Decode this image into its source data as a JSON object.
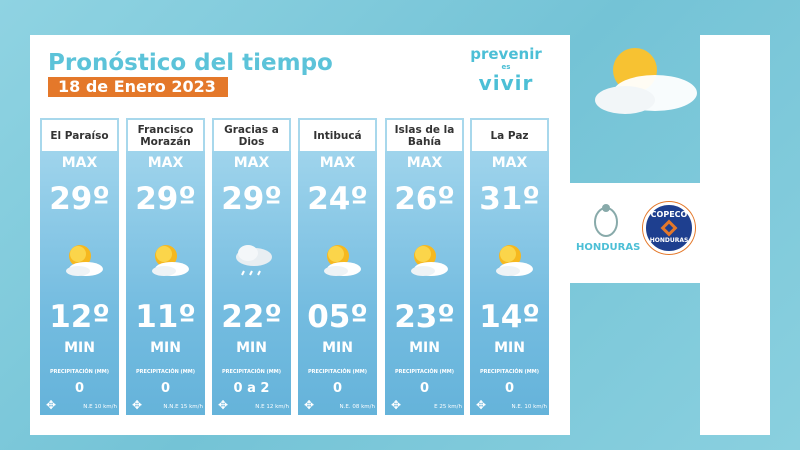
{
  "header": {
    "title": "Pronóstico del tiempo",
    "date": "18 de Enero 2023"
  },
  "brand": {
    "line1": "prevenir",
    "line2": "es",
    "line3": "vivir"
  },
  "labels": {
    "max": "MAX",
    "min": "MIN",
    "precip": "PRECIPITACIÓN (MM)"
  },
  "cards": [
    {
      "name": "El Paraíso",
      "max": "29º",
      "min": "12º",
      "icon": "sun-cloud-icon",
      "precip": "0",
      "wind": "N.E 10 km/h"
    },
    {
      "name": "Francisco Morazán",
      "max": "29º",
      "min": "11º",
      "icon": "sun-cloud-icon",
      "precip": "0",
      "wind": "N.N.E 15 km/h"
    },
    {
      "name": "Gracias a Dios",
      "max": "29º",
      "min": "22º",
      "icon": "rain-cloud-icon",
      "precip": "0 a 2",
      "wind": "N.E 12 km/h"
    },
    {
      "name": "Intibucá",
      "max": "24º",
      "min": "05º",
      "icon": "sun-cloud-icon",
      "precip": "0",
      "wind": "N.E. 08 km/h"
    },
    {
      "name": "Islas de la Bahía",
      "max": "26º",
      "min": "23º",
      "icon": "sun-cloud-icon",
      "precip": "0",
      "wind": "E 25 km/h"
    },
    {
      "name": "La Paz",
      "max": "31º",
      "min": "14º",
      "icon": "sun-cloud-icon",
      "precip": "0",
      "wind": "N.E. 10 km/h"
    }
  ],
  "logos": {
    "honduras": "HONDURAS",
    "copeco_top": "COPECO",
    "copeco_bottom": "HONDURAS"
  },
  "colors": {
    "accent": "#5cc3d9",
    "date_badge": "#e4782a",
    "card": "#7ec3e3"
  }
}
